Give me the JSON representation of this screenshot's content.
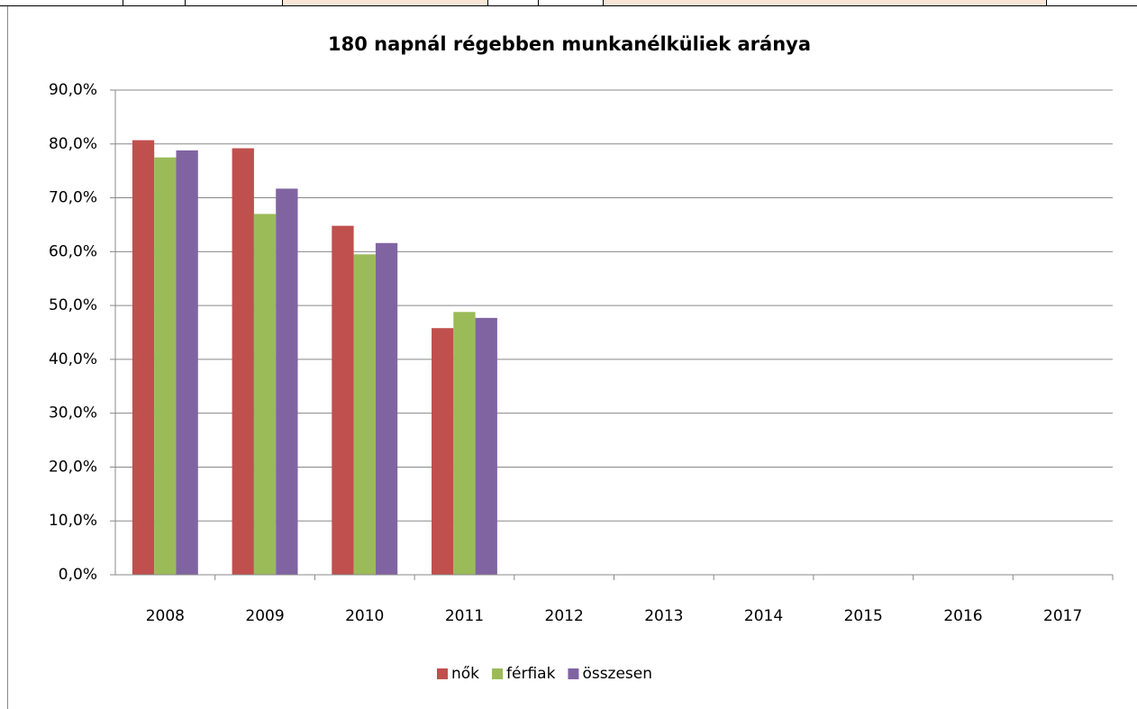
{
  "chart_data": {
    "type": "bar",
    "title": "180 napnál régebben munkanélküliek aránya",
    "categories": [
      "2008",
      "2009",
      "2010",
      "2011",
      "2012",
      "2013",
      "2014",
      "2015",
      "2016",
      "2017"
    ],
    "series": [
      {
        "name": "nők",
        "color": "#c0504d",
        "values": [
          80.7,
          79.2,
          64.8,
          45.8,
          null,
          null,
          null,
          null,
          null,
          null
        ]
      },
      {
        "name": "férfiak",
        "color": "#9bbb59",
        "values": [
          77.5,
          67.0,
          59.5,
          48.8,
          null,
          null,
          null,
          null,
          null,
          null
        ]
      },
      {
        "name": "összesen",
        "color": "#8064a2",
        "values": [
          78.8,
          71.7,
          61.6,
          47.7,
          null,
          null,
          null,
          null,
          null,
          null
        ]
      }
    ],
    "ylim": [
      0,
      90
    ],
    "yticks": [
      {
        "value": 0,
        "label": "0,0%"
      },
      {
        "value": 10,
        "label": "10,0%"
      },
      {
        "value": 20,
        "label": "20,0%"
      },
      {
        "value": 30,
        "label": "30,0%"
      },
      {
        "value": 40,
        "label": "40,0%"
      },
      {
        "value": 50,
        "label": "50,0%"
      },
      {
        "value": 60,
        "label": "60,0%"
      },
      {
        "value": 70,
        "label": "70,0%"
      },
      {
        "value": 80,
        "label": "80,0%"
      },
      {
        "value": 90,
        "label": "90,0%"
      }
    ],
    "grid": true,
    "legend": "bottom"
  }
}
